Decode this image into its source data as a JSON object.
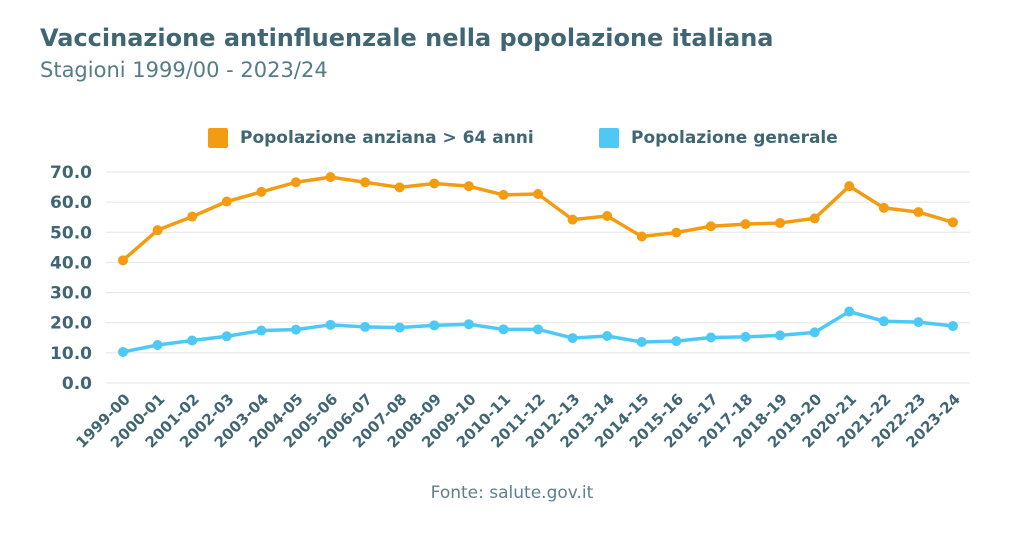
{
  "title": "Vaccinazione antinfluenzale nella popolazione italiana",
  "subtitle": "Stagioni 1999/00 - 2023/24",
  "source": "Fonte: salute.gov.it",
  "colors": {
    "series_0": "#f39c12",
    "series_1": "#4ec9f5",
    "grid": "#e4e4e4",
    "text": "#3f6672"
  },
  "chart_data": {
    "type": "line",
    "title": "Vaccinazione antinfluenzale nella popolazione italiana",
    "subtitle": "Stagioni 1999/00 - 2023/24",
    "legend_position": "top",
    "grid": true,
    "ylim": [
      0,
      70
    ],
    "yticks": [
      "0.0",
      "10.0",
      "20.0",
      "30.0",
      "40.0",
      "50.0",
      "60.0",
      "70.0"
    ],
    "categories": [
      "1999-00",
      "2000-01",
      "2001-02",
      "2002-03",
      "2003-04",
      "2004-05",
      "2005-06",
      "2006-07",
      "2007-08",
      "2008-09",
      "2009-10",
      "2010-11",
      "2011-12",
      "2012-13",
      "2013-14",
      "2014-15",
      "2015-16",
      "2016-17",
      "2017-18",
      "2018-19",
      "2019-20",
      "2020-21",
      "2021-22",
      "2022-23",
      "2023-24"
    ],
    "series": [
      {
        "name": "Popolazione anziana > 64 anni",
        "values": [
          40.7,
          50.7,
          55.2,
          60.2,
          63.4,
          66.6,
          68.3,
          66.6,
          64.9,
          66.2,
          65.3,
          62.4,
          62.7,
          54.2,
          55.4,
          48.6,
          49.9,
          52.0,
          52.7,
          53.1,
          54.6,
          65.3,
          58.1,
          56.7,
          53.3
        ]
      },
      {
        "name": "Popolazione generale",
        "values": [
          10.3,
          12.6,
          14.1,
          15.5,
          17.4,
          17.7,
          19.3,
          18.6,
          18.4,
          19.1,
          19.5,
          17.8,
          17.8,
          14.9,
          15.6,
          13.6,
          13.9,
          15.1,
          15.3,
          15.8,
          16.8,
          23.7,
          20.5,
          20.2,
          18.9
        ]
      }
    ]
  }
}
